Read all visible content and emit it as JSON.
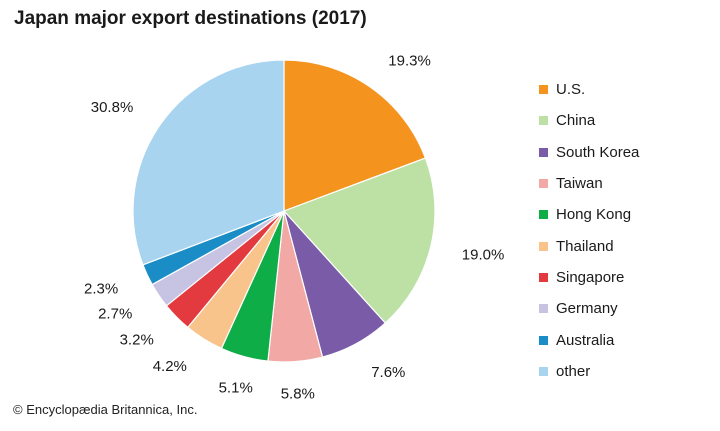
{
  "chart_data": {
    "type": "pie",
    "title": "Japan major export destinations (2017)",
    "slices": [
      {
        "label": "U.S.",
        "value": 19.3,
        "display": "19.3%",
        "color": "#f4931e"
      },
      {
        "label": "China",
        "value": 19.0,
        "display": "19.0%",
        "color": "#bde0a4"
      },
      {
        "label": "South Korea",
        "value": 7.6,
        "display": "7.6%",
        "color": "#7a5ba8"
      },
      {
        "label": "Taiwan",
        "value": 5.8,
        "display": "5.8%",
        "color": "#f2a8a5"
      },
      {
        "label": "Hong Kong",
        "value": 5.1,
        "display": "5.1%",
        "color": "#0fad48"
      },
      {
        "label": "Thailand",
        "value": 4.2,
        "display": "4.2%",
        "color": "#f8c48c"
      },
      {
        "label": "Singapore",
        "value": 3.2,
        "display": "3.2%",
        "color": "#e23a3e"
      },
      {
        "label": "Germany",
        "value": 2.7,
        "display": "2.7%",
        "color": "#c7c3e3"
      },
      {
        "label": "Australia",
        "value": 2.3,
        "display": "2.3%",
        "color": "#1b8dc6"
      },
      {
        "label": "other",
        "value": 30.8,
        "display": "30.8%",
        "color": "#a8d4f0"
      }
    ],
    "legend": "right"
  },
  "credit": "© Encyclopædia Britannica, Inc."
}
